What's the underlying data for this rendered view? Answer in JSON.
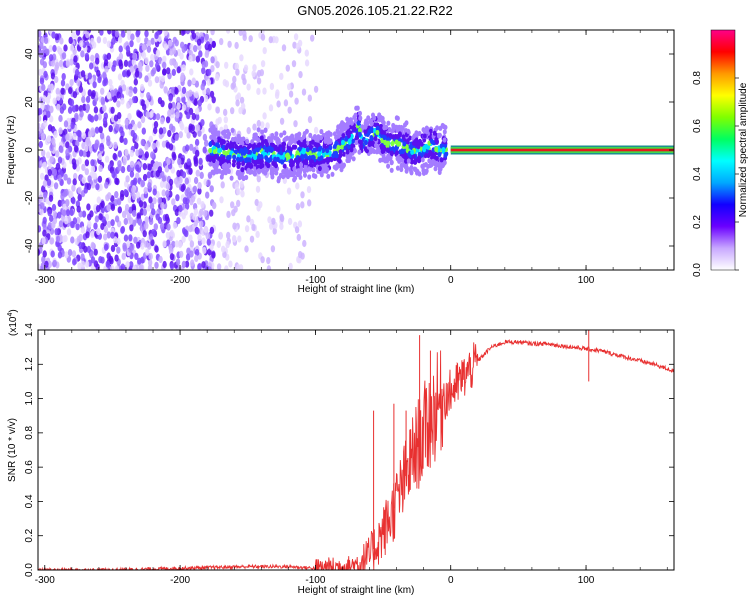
{
  "title": "GN05.2026.105.21.22.R22",
  "colors": {
    "snr_line": "#e83030",
    "carrier_core": "#e41a1c",
    "carrier_halo": "#41d94a",
    "carrier_outer": "#1e8f8f"
  },
  "colorbar": {
    "label": "Normalized spectral amplitude",
    "ticks": [
      "0.0",
      "0.2",
      "0.4",
      "0.6",
      "0.8"
    ],
    "range": [
      0,
      1
    ],
    "stops": [
      "#ffffff",
      "#c8a8ff",
      "#6a00ff",
      "#1200ff",
      "#00a8ff",
      "#00ffff",
      "#00ff60",
      "#80ff00",
      "#ffff00",
      "#ff9900",
      "#ff0000",
      "#ff0088"
    ]
  },
  "chart_data": [
    {
      "type": "heatmap",
      "xlabel": "Height of straight line (km)",
      "ylabel": "Frequency (Hz)",
      "xlim": [
        -305,
        165
      ],
      "ylim": [
        -50,
        50
      ],
      "xticks": [
        "-300",
        "-200",
        "-100",
        "0",
        "100"
      ],
      "yticks": [
        "-40",
        "-20",
        "0",
        "20",
        "40"
      ],
      "ridge": {
        "x": [
          -175,
          -160,
          -150,
          -140,
          -130,
          -120,
          -110,
          -100,
          -95,
          -90,
          -85,
          -80,
          -75,
          -70,
          -68,
          -65,
          -60,
          -55,
          -50,
          -45,
          -40,
          -35,
          -30,
          -25,
          -20,
          -15,
          -10,
          -5,
          0,
          50,
          100,
          160
        ],
        "y": [
          0,
          -2,
          -3,
          -1,
          -2,
          -3,
          -1,
          -2,
          -1,
          -2,
          0,
          2,
          4,
          7,
          10,
          3,
          6,
          8,
          4,
          2,
          3,
          1,
          0,
          -1,
          0,
          2,
          1,
          0,
          0,
          0,
          0,
          0
        ]
      },
      "noise_region": [
        -305,
        -100
      ],
      "carrier_start": 0
    },
    {
      "type": "line",
      "xlabel": "Height of straight line (km)",
      "ylabel": "SNR (10 * v/v)",
      "yscale_label": "(x10",
      "yscale_exp": "4",
      "xlim": [
        -305,
        165
      ],
      "ylim": [
        0,
        1.4
      ],
      "xticks": [
        "-300",
        "-200",
        "-100",
        "0",
        "100"
      ],
      "yticks": [
        "0.0",
        "0.2",
        "0.4",
        "0.6",
        "0.8",
        "1.0",
        "1.2",
        "1.4"
      ],
      "series": [
        {
          "x": [
            -305,
            -250,
            -200,
            -150,
            -120,
            -100,
            -80,
            -70,
            -60,
            -55,
            -50,
            -45,
            -40,
            -35,
            -30,
            -25,
            -20,
            -15,
            -10,
            -5,
            0,
            10,
            20,
            30,
            40,
            50,
            60,
            70,
            80,
            90,
            100,
            110,
            120,
            130,
            140,
            150,
            165
          ],
          "values": [
            0.0,
            0.0,
            0.01,
            0.02,
            0.02,
            0.01,
            0.02,
            0.03,
            0.08,
            0.15,
            0.22,
            0.3,
            0.4,
            0.5,
            0.62,
            0.72,
            0.8,
            0.88,
            0.96,
            1.0,
            1.04,
            1.13,
            1.22,
            1.3,
            1.33,
            1.33,
            1.32,
            1.32,
            1.31,
            1.3,
            1.29,
            1.28,
            1.26,
            1.24,
            1.22,
            1.2,
            1.16
          ]
        }
      ],
      "spikes": [
        {
          "x": -57,
          "value": 0.93
        },
        {
          "x": -42,
          "value": 0.97
        },
        {
          "x": -33,
          "value": 0.93
        },
        {
          "x": -23,
          "value": 1.37
        },
        {
          "x": -15,
          "value": 1.28
        },
        {
          "x": 102,
          "value": 1.42
        },
        {
          "x": 102,
          "value": 1.1
        }
      ]
    }
  ]
}
